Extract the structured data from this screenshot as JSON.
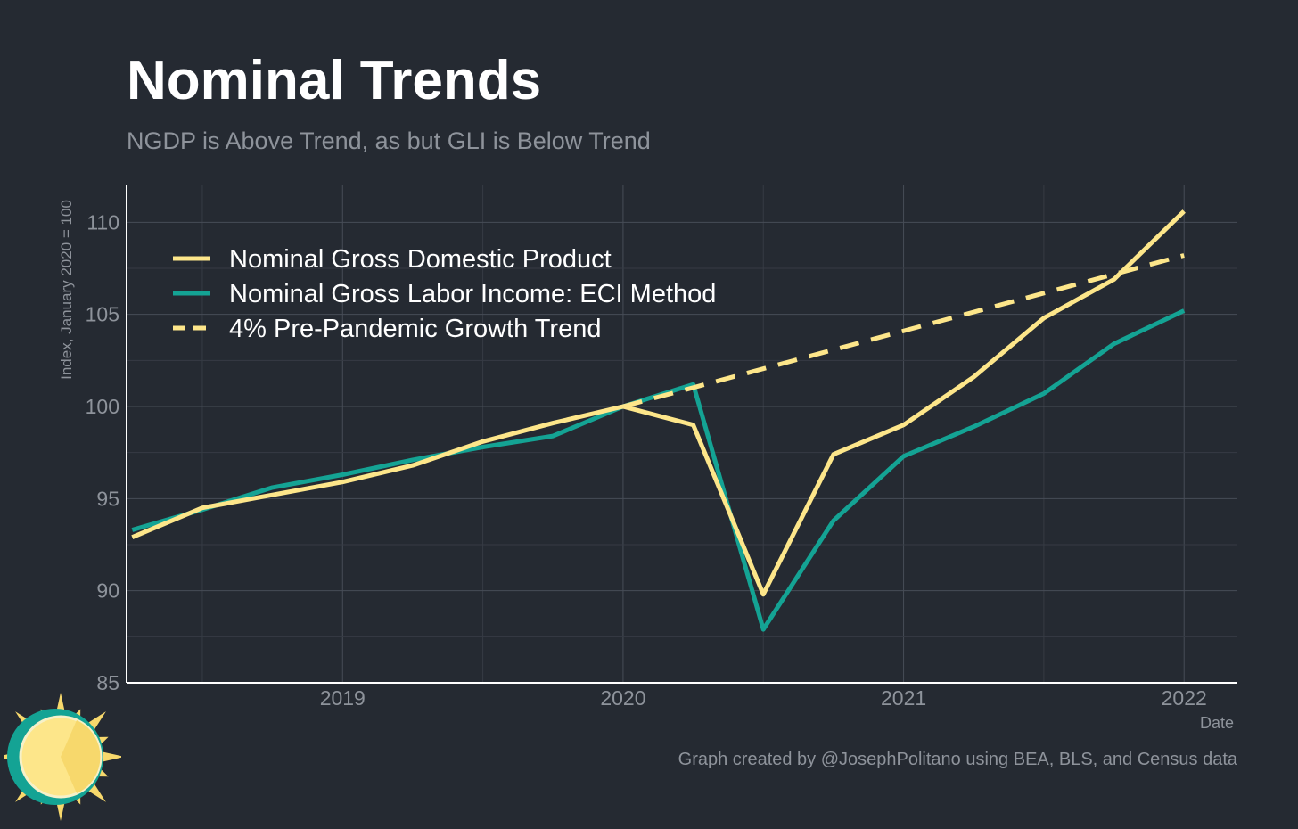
{
  "title": "Nominal Trends",
  "subtitle": "NGDP is Above Trend, as but GLI is Below Trend",
  "caption": "Graph created by @JosephPolitano using BEA, BLS, and Census data",
  "chart_data": {
    "type": "line",
    "title": "Nominal Trends",
    "subtitle": "NGDP is Above Trend, as but GLI is Below Trend",
    "xlabel": "Date",
    "ylabel": "Index, January 2020 = 100",
    "xlim": [
      2018.23,
      2022.19
    ],
    "ylim": [
      85,
      112
    ],
    "x_ticks": [
      2019,
      2020,
      2021,
      2022
    ],
    "x_tick_labels": [
      "2019",
      "2020",
      "2021",
      "2022"
    ],
    "y_ticks": [
      85,
      90,
      95,
      100,
      105,
      110
    ],
    "y_tick_labels": [
      "85",
      "90",
      "95",
      "100",
      "105",
      "110"
    ],
    "grid": true,
    "legend_position": "top-left",
    "series": [
      {
        "name": "Nominal Gross Domestic Product",
        "color": "#fde68a",
        "style": "solid",
        "x": [
          2018.25,
          2018.5,
          2018.75,
          2019.0,
          2019.25,
          2019.5,
          2019.75,
          2020.0,
          2020.25,
          2020.5,
          2020.75,
          2021.0,
          2021.25,
          2021.5,
          2021.75,
          2022.0
        ],
        "values": [
          92.9,
          94.5,
          95.2,
          95.9,
          96.8,
          98.1,
          99.1,
          100.0,
          99.0,
          89.8,
          97.4,
          99.0,
          101.6,
          104.8,
          106.9,
          110.6
        ]
      },
      {
        "name": "Nominal Gross Labor Income: ECI Method",
        "color": "#14a394",
        "style": "solid",
        "x": [
          2018.25,
          2018.5,
          2018.75,
          2019.0,
          2019.25,
          2019.5,
          2019.75,
          2020.0,
          2020.25,
          2020.5,
          2020.75,
          2021.0,
          2021.25,
          2021.5,
          2021.75,
          2022.0
        ],
        "values": [
          93.3,
          94.4,
          95.6,
          96.3,
          97.1,
          97.8,
          98.4,
          100.0,
          101.2,
          87.9,
          93.8,
          97.3,
          98.9,
          100.7,
          103.4,
          105.2
        ]
      },
      {
        "name": "4% Pre-Pandemic Growth Trend",
        "color": "#fde68a",
        "style": "dashed",
        "x": [
          2020.0,
          2022.0
        ],
        "values": [
          100.0,
          108.2
        ]
      }
    ]
  }
}
